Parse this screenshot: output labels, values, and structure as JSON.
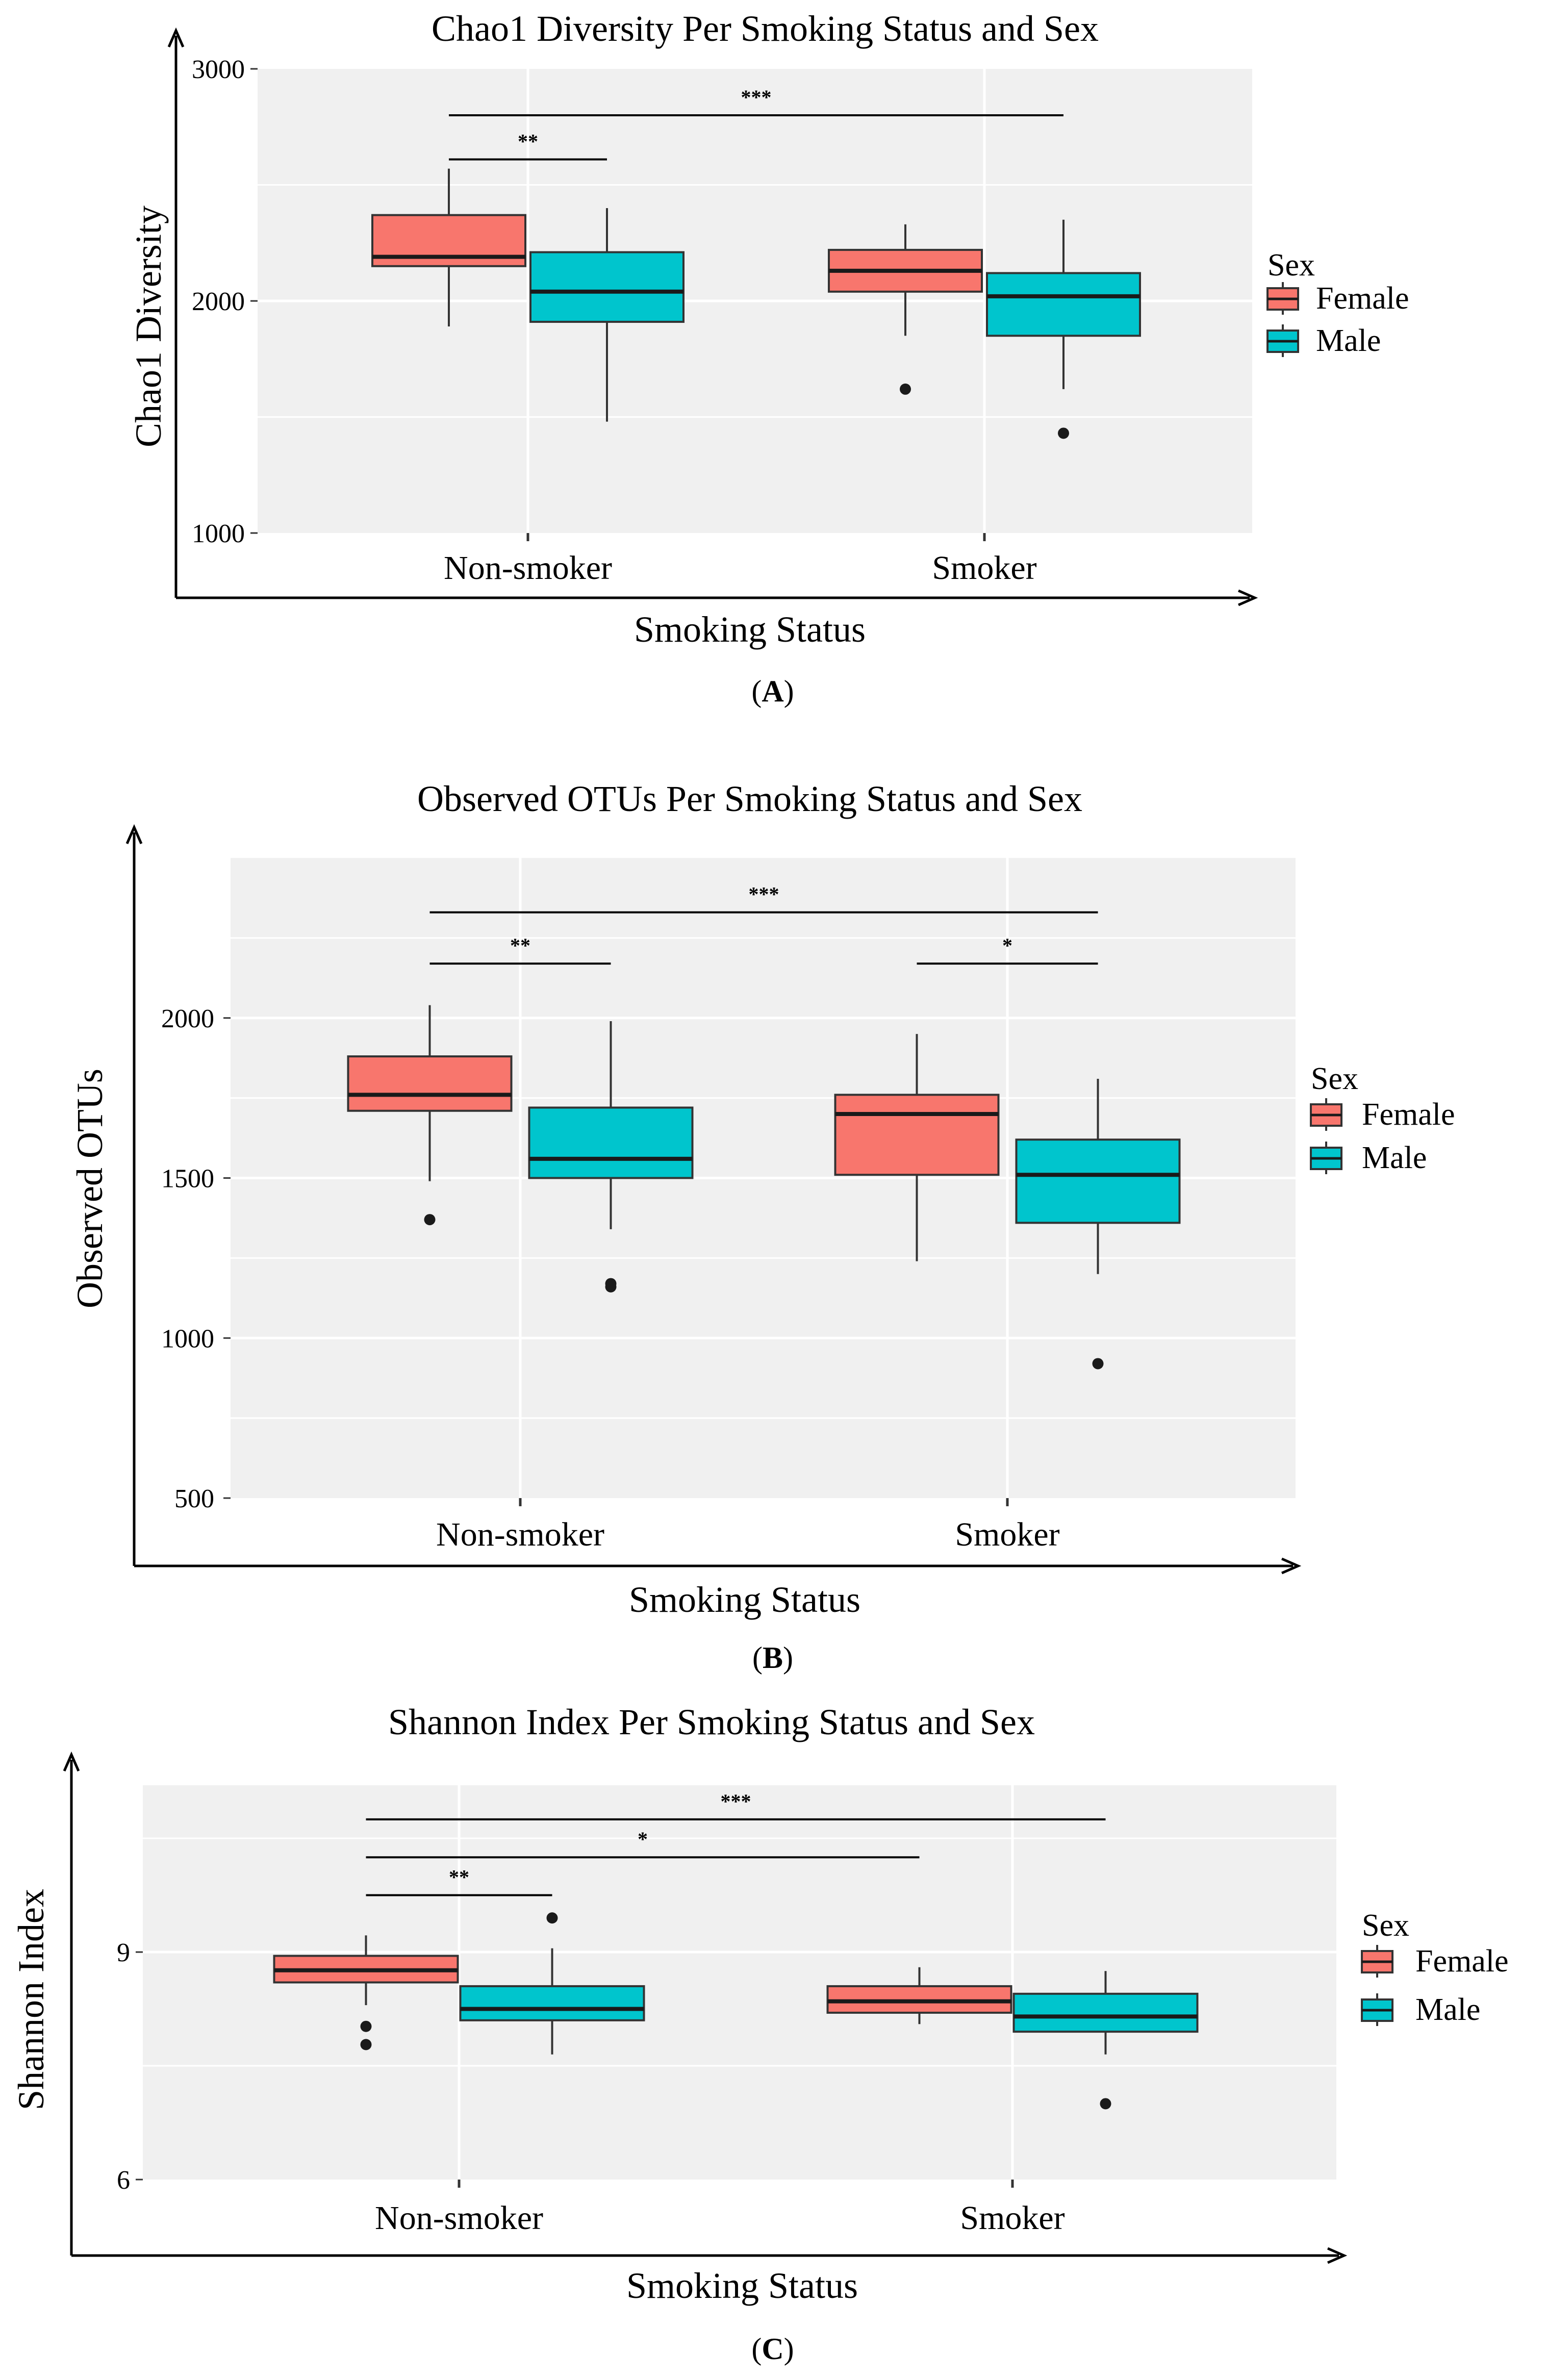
{
  "figure": {
    "legend_title": "Sex",
    "legend_entries": [
      "Female",
      "Male"
    ],
    "colors": {
      "female": "#F8766D",
      "male": "#00C5CD",
      "panel_bg": "#F0F0F0",
      "grid": "#FFFFFF",
      "axis": "#000000"
    }
  },
  "chart_data": [
    {
      "type": "box",
      "panel_label": "A",
      "title": "Chao1 Diversity Per Smoking Status and Sex",
      "xlabel": "Smoking Status",
      "ylabel": "Chao1 Diversity",
      "categories": [
        "Non-smoker",
        "Smoker"
      ],
      "ylim": [
        1000,
        3000
      ],
      "yticks": [
        1000,
        2000,
        3000
      ],
      "legend_position": "right",
      "series": [
        {
          "name": "Female",
          "boxes": [
            {
              "whisker_low": 1890,
              "q1": 2150,
              "median": 2190,
              "q3": 2370,
              "whisker_high": 2570,
              "outliers": []
            },
            {
              "whisker_low": 1850,
              "q1": 2040,
              "median": 2130,
              "q3": 2220,
              "whisker_high": 2330,
              "outliers": [
                1620
              ]
            }
          ]
        },
        {
          "name": "Male",
          "boxes": [
            {
              "whisker_low": 1480,
              "q1": 1910,
              "median": 2040,
              "q3": 2210,
              "whisker_high": 2400,
              "outliers": []
            },
            {
              "whisker_low": 1620,
              "q1": 1850,
              "median": 2020,
              "q3": 2120,
              "whisker_high": 2350,
              "outliers": [
                1430
              ]
            }
          ]
        }
      ],
      "significance": [
        {
          "label": "***",
          "from": {
            "category": 0,
            "group": 0
          },
          "to": {
            "category": 1,
            "group": 1
          },
          "y": 2800
        },
        {
          "label": "**",
          "from": {
            "category": 0,
            "group": 0
          },
          "to": {
            "category": 0,
            "group": 1
          },
          "y": 2610
        }
      ]
    },
    {
      "type": "box",
      "panel_label": "B",
      "title": "Observed OTUs Per Smoking Status and Sex",
      "xlabel": "Smoking Status",
      "ylabel": "Observed OTUs",
      "categories": [
        "Non-smoker",
        "Smoker"
      ],
      "ylim": [
        500,
        2500
      ],
      "yticks": [
        500,
        1000,
        1500,
        2000
      ],
      "legend_position": "right",
      "series": [
        {
          "name": "Female",
          "boxes": [
            {
              "whisker_low": 1490,
              "q1": 1710,
              "median": 1760,
              "q3": 1880,
              "whisker_high": 2040,
              "outliers": [
                1370
              ]
            },
            {
              "whisker_low": 1240,
              "q1": 1510,
              "median": 1700,
              "q3": 1760,
              "whisker_high": 1950,
              "outliers": []
            }
          ]
        },
        {
          "name": "Male",
          "boxes": [
            {
              "whisker_low": 1340,
              "q1": 1500,
              "median": 1560,
              "q3": 1720,
              "whisker_high": 1990,
              "outliers": [
                1160,
                1170
              ]
            },
            {
              "whisker_low": 1200,
              "q1": 1360,
              "median": 1510,
              "q3": 1620,
              "whisker_high": 1810,
              "outliers": [
                920
              ]
            }
          ]
        }
      ],
      "significance": [
        {
          "label": "***",
          "from": {
            "category": 0,
            "group": 0
          },
          "to": {
            "category": 1,
            "group": 1
          },
          "y": 2330
        },
        {
          "label": "**",
          "from": {
            "category": 0,
            "group": 0
          },
          "to": {
            "category": 0,
            "group": 1
          },
          "y": 2170
        },
        {
          "label": "*",
          "from": {
            "category": 1,
            "group": 0
          },
          "to": {
            "category": 1,
            "group": 1
          },
          "y": 2170
        }
      ]
    },
    {
      "type": "box",
      "panel_label": "C",
      "title": "Shannon Index Per Smoking Status and Sex",
      "xlabel": "Smoking Status",
      "ylabel": "Shannon Index",
      "categories": [
        "Non-smoker",
        "Smoker"
      ],
      "ylim": [
        6,
        11.2
      ],
      "yticks": [
        6,
        9
      ],
      "legend_position": "right",
      "series": [
        {
          "name": "Female",
          "boxes": [
            {
              "whisker_low": 8.3,
              "q1": 8.6,
              "median": 8.76,
              "q3": 8.95,
              "whisker_high": 9.22,
              "outliers": [
                8.02,
                7.78
              ]
            },
            {
              "whisker_low": 8.05,
              "q1": 8.2,
              "median": 8.35,
              "q3": 8.55,
              "whisker_high": 8.8
            }
          ]
        },
        {
          "name": "Male",
          "boxes": [
            {
              "whisker_low": 7.65,
              "q1": 8.1,
              "median": 8.25,
              "q3": 8.55,
              "whisker_high": 9.05,
              "outliers": [
                9.45
              ]
            },
            {
              "whisker_low": 7.65,
              "q1": 7.95,
              "median": 8.15,
              "q3": 8.45,
              "whisker_high": 8.75,
              "outliers": [
                7.0
              ]
            }
          ]
        }
      ],
      "significance": [
        {
          "label": "***",
          "from": {
            "category": 0,
            "group": 0
          },
          "to": {
            "category": 1,
            "group": 1
          },
          "y": 10.75
        },
        {
          "label": "*",
          "from": {
            "category": 0,
            "group": 0
          },
          "to": {
            "category": 1,
            "group": 0
          },
          "y": 10.25
        },
        {
          "label": "**",
          "from": {
            "category": 0,
            "group": 0
          },
          "to": {
            "category": 0,
            "group": 1
          },
          "y": 9.75
        }
      ]
    }
  ]
}
